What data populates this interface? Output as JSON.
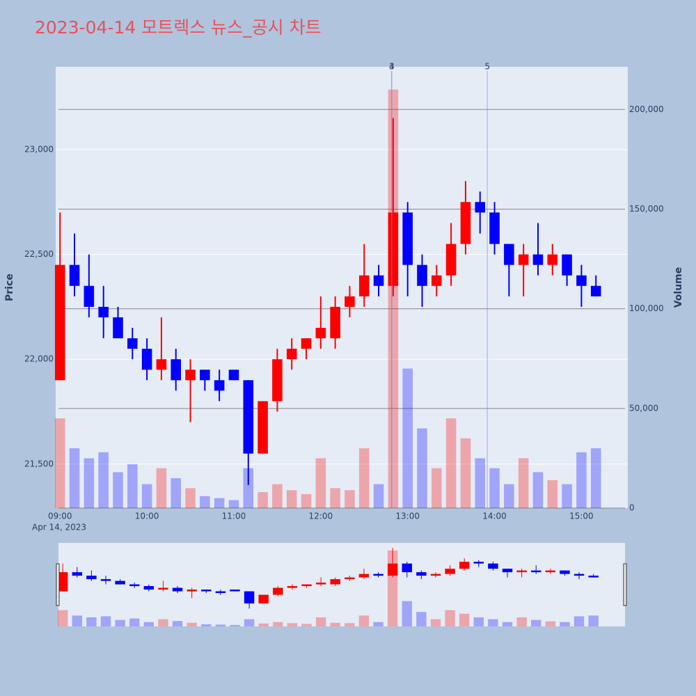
{
  "chart_data": {
    "type": "candlestick",
    "title": "2023-04-14 모트렉스 뉴스_공시 차트",
    "x": [
      "09:00",
      "09:10",
      "09:20",
      "09:30",
      "09:40",
      "09:50",
      "10:00",
      "10:10",
      "10:20",
      "10:30",
      "10:40",
      "10:50",
      "11:00",
      "11:10",
      "11:20",
      "11:30",
      "11:40",
      "11:50",
      "12:00",
      "12:10",
      "12:20",
      "12:30",
      "12:40",
      "12:50",
      "13:00",
      "13:10",
      "13:20",
      "13:30",
      "13:40",
      "13:50",
      "14:00",
      "14:10",
      "14:20",
      "14:30",
      "14:40",
      "14:50",
      "15:00",
      "15:10"
    ],
    "open": [
      21900,
      22450,
      22350,
      22250,
      22200,
      22100,
      22050,
      21950,
      22000,
      21900,
      21950,
      21900,
      21950,
      21900,
      21550,
      21800,
      22000,
      22050,
      22100,
      22100,
      22250,
      22300,
      22400,
      22350,
      22700,
      22450,
      22350,
      22400,
      22550,
      22750,
      22700,
      22550,
      22450,
      22500,
      22450,
      22500,
      22400,
      22350
    ],
    "high": [
      22700,
      22600,
      22500,
      22350,
      22250,
      22150,
      22100,
      22200,
      22050,
      22000,
      21950,
      21950,
      21950,
      21900,
      21800,
      22050,
      22100,
      22100,
      22300,
      22300,
      22350,
      22550,
      22450,
      23150,
      22750,
      22500,
      22450,
      22650,
      22850,
      22800,
      22750,
      22550,
      22550,
      22650,
      22550,
      22500,
      22450,
      22400
    ],
    "low": [
      21900,
      22300,
      22200,
      22100,
      22100,
      22000,
      21900,
      21900,
      21850,
      21700,
      21850,
      21800,
      21900,
      21400,
      21550,
      21750,
      21950,
      22000,
      22050,
      22050,
      22200,
      22250,
      22300,
      22300,
      22300,
      22250,
      22300,
      22350,
      22500,
      22600,
      22500,
      22300,
      22300,
      22400,
      22400,
      22350,
      22250,
      22300
    ],
    "close": [
      22450,
      22350,
      22250,
      22200,
      22100,
      22050,
      21950,
      22000,
      21900,
      21950,
      21900,
      21850,
      21900,
      21550,
      21800,
      22000,
      22050,
      22100,
      22150,
      22250,
      22300,
      22400,
      22350,
      22700,
      22450,
      22350,
      22400,
      22550,
      22750,
      22700,
      22550,
      22450,
      22500,
      22450,
      22500,
      22400,
      22350,
      22300
    ],
    "volume": [
      45000,
      30000,
      25000,
      28000,
      18000,
      22000,
      12000,
      20000,
      15000,
      10000,
      6000,
      5000,
      4000,
      20000,
      8000,
      12000,
      9000,
      7000,
      25000,
      10000,
      9000,
      30000,
      12000,
      210000,
      70000,
      40000,
      20000,
      45000,
      35000,
      25000,
      20000,
      12000,
      25000,
      18000,
      14000,
      12000,
      28000,
      30000
    ],
    "xlim": [
      "08:57",
      "15:32"
    ],
    "xticks": [
      "09:00",
      "10:00",
      "11:00",
      "12:00",
      "13:00",
      "14:00",
      "15:00"
    ],
    "x_sublabel": "Apr 14, 2023",
    "ylabel": "Price",
    "y2label": "Volume",
    "ylim": [
      21290,
      23395
    ],
    "yticks": [
      {
        "value": 21500,
        "label": "21,500"
      },
      {
        "value": 22000,
        "label": "22,000"
      },
      {
        "value": 22500,
        "label": "22,500"
      },
      {
        "value": 23000,
        "label": "23,000"
      }
    ],
    "y2lim": [
      0,
      221400
    ],
    "y2ticks": [
      0,
      {
        "value": 50000,
        "label": "50,000"
      },
      {
        "value": 100000,
        "label": "100,000"
      },
      {
        "value": 150000,
        "label": "150,000"
      },
      {
        "value": 200000,
        "label": "200,000"
      }
    ],
    "up_color": "#ff0000",
    "down_color": "#0000ff",
    "annotations": [
      {
        "x": "12:49",
        "label": "3"
      },
      {
        "x": "12:49",
        "label": "4"
      },
      {
        "x": "13:55",
        "label": "5"
      }
    ],
    "rangeslider": true
  }
}
